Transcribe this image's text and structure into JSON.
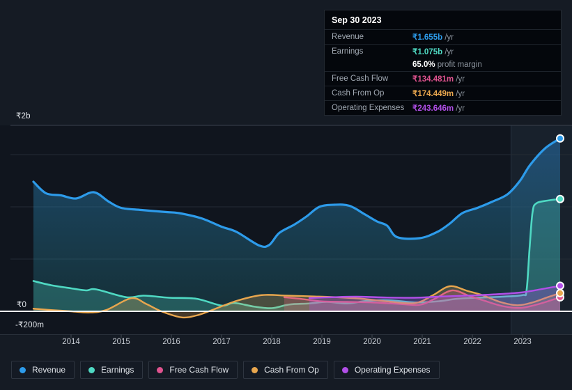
{
  "tooltip": {
    "date": "Sep 30 2023",
    "rows": [
      {
        "label": "Revenue",
        "value": "₹1.655b",
        "suffix": " /yr",
        "series": "revenue"
      },
      {
        "label": "Earnings",
        "value": "₹1.075b",
        "suffix": " /yr",
        "series": "earnings"
      },
      {
        "label": "",
        "value": "65.0%",
        "suffix": " profit margin",
        "series": "margin"
      },
      {
        "label": "Free Cash Flow",
        "value": "₹134.481m",
        "suffix": " /yr",
        "series": "free_cash_flow"
      },
      {
        "label": "Cash From Op",
        "value": "₹174.449m",
        "suffix": " /yr",
        "series": "cash_from_op"
      },
      {
        "label": "Operating Expenses",
        "value": "₹243.646m",
        "suffix": " /yr",
        "series": "operating_expenses"
      }
    ]
  },
  "legend": {
    "items": [
      {
        "label": "Revenue",
        "series": "revenue"
      },
      {
        "label": "Earnings",
        "series": "earnings"
      },
      {
        "label": "Free Cash Flow",
        "series": "free_cash_flow"
      },
      {
        "label": "Cash From Op",
        "series": "cash_from_op"
      },
      {
        "label": "Operating Expenses",
        "series": "operating_expenses"
      }
    ]
  },
  "y_axis_labels": {
    "top": "₹2b",
    "zero": "₹0",
    "bottom": "-₹200m"
  },
  "x_axis_labels": [
    "2014",
    "2015",
    "2016",
    "2017",
    "2018",
    "2019",
    "2020",
    "2021",
    "2022",
    "2023"
  ],
  "colors": {
    "series": {
      "revenue": "#2d9bea",
      "earnings": "#4fd9c3",
      "free_cash_flow": "#e0538f",
      "cash_from_op": "#e8a64e",
      "operating_expenses": "#b14fe8",
      "margin": "#ffffff"
    },
    "grid": "#242b35",
    "plot_top_border": "#3a414d",
    "zero_line": "#ffffff",
    "axis_line": "#2b323c",
    "tick": "#40474f",
    "plot_bg": "#10151e",
    "band": "rgba(125,175,220,0.08)",
    "band_edge": "rgba(160,200,240,0.14)"
  },
  "chart_data": {
    "type": "area",
    "title": "Company earnings and revenue history (₹, INR)",
    "unit": "billions INR",
    "legend_position": "bottom",
    "x_axis": {
      "ticks": [
        2014,
        2015,
        2016,
        2017,
        2018,
        2019,
        2020,
        2021,
        2022,
        2023
      ]
    },
    "y_axis": {
      "range_b": [
        -0.2,
        2.0
      ],
      "gridlines_b": [
        1.5,
        1.0,
        0.5
      ],
      "labeled_values": {
        "top": 2.0,
        "zero": 0,
        "bottom": -0.2
      }
    },
    "highlight_band_start_year": 2022.77,
    "series": [
      {
        "name": "Revenue",
        "key": "revenue",
        "width": 3.2,
        "fill": "rgba(42,130,205,0.40)",
        "points": [
          [
            2013.25,
            1.24
          ],
          [
            2013.5,
            1.13
          ],
          [
            2013.8,
            1.11
          ],
          [
            2014.1,
            1.08
          ],
          [
            2014.45,
            1.14
          ],
          [
            2014.75,
            1.05
          ],
          [
            2015.0,
            0.99
          ],
          [
            2015.4,
            0.97
          ],
          [
            2015.9,
            0.95
          ],
          [
            2016.15,
            0.94
          ],
          [
            2016.6,
            0.89
          ],
          [
            2017.0,
            0.81
          ],
          [
            2017.3,
            0.76
          ],
          [
            2017.75,
            0.63
          ],
          [
            2017.95,
            0.635
          ],
          [
            2018.15,
            0.75
          ],
          [
            2018.45,
            0.83
          ],
          [
            2018.7,
            0.91
          ],
          [
            2018.95,
            1.0
          ],
          [
            2019.25,
            1.02
          ],
          [
            2019.55,
            1.01
          ],
          [
            2019.85,
            0.93
          ],
          [
            2020.1,
            0.86
          ],
          [
            2020.3,
            0.82
          ],
          [
            2020.5,
            0.71
          ],
          [
            2020.95,
            0.7
          ],
          [
            2021.3,
            0.76
          ],
          [
            2021.55,
            0.84
          ],
          [
            2021.8,
            0.94
          ],
          [
            2022.1,
            0.99
          ],
          [
            2022.4,
            1.05
          ],
          [
            2022.7,
            1.12
          ],
          [
            2022.95,
            1.25
          ],
          [
            2023.15,
            1.4
          ],
          [
            2023.45,
            1.56
          ],
          [
            2023.75,
            1.655
          ]
        ]
      },
      {
        "name": "Earnings",
        "key": "earnings",
        "width": 2.6,
        "fill": "rgba(79,217,195,0.25)",
        "points": [
          [
            2013.25,
            0.29
          ],
          [
            2013.6,
            0.25
          ],
          [
            2014.0,
            0.22
          ],
          [
            2014.3,
            0.2
          ],
          [
            2014.5,
            0.21
          ],
          [
            2015.1,
            0.135
          ],
          [
            2015.45,
            0.15
          ],
          [
            2015.95,
            0.13
          ],
          [
            2016.5,
            0.12
          ],
          [
            2017.0,
            0.055
          ],
          [
            2017.25,
            0.08
          ],
          [
            2017.65,
            0.045
          ],
          [
            2018.0,
            0.03
          ],
          [
            2018.35,
            0.065
          ],
          [
            2018.75,
            0.075
          ],
          [
            2019.1,
            0.09
          ],
          [
            2019.5,
            0.075
          ],
          [
            2019.9,
            0.1
          ],
          [
            2020.35,
            0.105
          ],
          [
            2020.85,
            0.085
          ],
          [
            2021.3,
            0.095
          ],
          [
            2021.7,
            0.12
          ],
          [
            2022.1,
            0.13
          ],
          [
            2022.6,
            0.14
          ],
          [
            2023.0,
            0.155
          ],
          [
            2023.08,
            0.2
          ],
          [
            2023.14,
            0.6
          ],
          [
            2023.2,
            0.95
          ],
          [
            2023.28,
            1.035
          ],
          [
            2023.5,
            1.06
          ],
          [
            2023.75,
            1.075
          ]
        ]
      },
      {
        "name": "Free Cash Flow",
        "key": "free_cash_flow",
        "width": 2.4,
        "fill": "rgba(224,83,143,0.28)",
        "points": [
          [
            2018.25,
            0.135
          ],
          [
            2018.6,
            0.118
          ],
          [
            2019.0,
            0.095
          ],
          [
            2019.5,
            0.09
          ],
          [
            2020.0,
            0.085
          ],
          [
            2020.5,
            0.072
          ],
          [
            2020.95,
            0.062
          ],
          [
            2021.25,
            0.12
          ],
          [
            2021.6,
            0.2
          ],
          [
            2021.95,
            0.145
          ],
          [
            2022.25,
            0.1
          ],
          [
            2022.6,
            0.05
          ],
          [
            2022.95,
            0.032
          ],
          [
            2023.25,
            0.06
          ],
          [
            2023.5,
            0.095
          ],
          [
            2023.75,
            0.134
          ]
        ]
      },
      {
        "name": "Cash From Op",
        "key": "cash_from_op",
        "width": 2.4,
        "fill": "rgba(232,166,78,0.25)",
        "points": [
          [
            2013.25,
            0.025
          ],
          [
            2013.6,
            0.012
          ],
          [
            2014.0,
            0.0
          ],
          [
            2014.35,
            -0.012
          ],
          [
            2014.7,
            0.012
          ],
          [
            2015.2,
            0.125
          ],
          [
            2015.5,
            0.07
          ],
          [
            2015.8,
            0.0
          ],
          [
            2016.2,
            -0.058
          ],
          [
            2016.5,
            -0.04
          ],
          [
            2016.8,
            0.01
          ],
          [
            2017.3,
            0.1
          ],
          [
            2017.8,
            0.155
          ],
          [
            2018.3,
            0.15
          ],
          [
            2018.8,
            0.143
          ],
          [
            2019.3,
            0.135
          ],
          [
            2019.8,
            0.12
          ],
          [
            2020.3,
            0.095
          ],
          [
            2020.85,
            0.078
          ],
          [
            2021.2,
            0.15
          ],
          [
            2021.55,
            0.24
          ],
          [
            2021.9,
            0.195
          ],
          [
            2022.2,
            0.155
          ],
          [
            2022.55,
            0.09
          ],
          [
            2022.9,
            0.058
          ],
          [
            2023.2,
            0.085
          ],
          [
            2023.5,
            0.135
          ],
          [
            2023.75,
            0.174
          ]
        ]
      },
      {
        "name": "Operating Expenses",
        "key": "operating_expenses",
        "width": 2.4,
        "fill": "rgba(177,79,232,0.30)",
        "points": [
          [
            2018.75,
            0.127
          ],
          [
            2019.2,
            0.135
          ],
          [
            2019.7,
            0.14
          ],
          [
            2020.3,
            0.132
          ],
          [
            2020.85,
            0.13
          ],
          [
            2021.3,
            0.14
          ],
          [
            2021.75,
            0.148
          ],
          [
            2022.1,
            0.154
          ],
          [
            2022.55,
            0.165
          ],
          [
            2023.0,
            0.182
          ],
          [
            2023.35,
            0.21
          ],
          [
            2023.75,
            0.244
          ]
        ]
      }
    ]
  }
}
